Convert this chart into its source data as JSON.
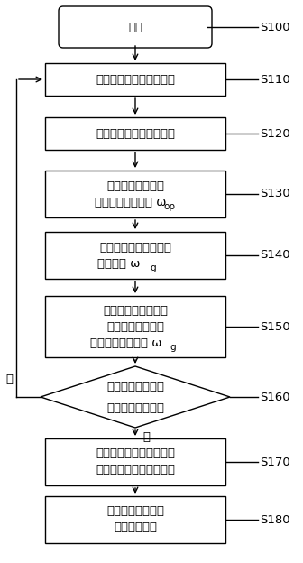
{
  "bg_color": "#ffffff",
  "start_label": "开始",
  "s110_label": "获取旋转主轴的垂直倾角",
  "s120_label": "计算旋转主轴的振颤烈度",
  "s130_line1": "根据当前风速计算",
  "s130_line2": "风力机的最优转速 ω",
  "s130_sub": "op",
  "s140_line1": "分析确定风力发电机的",
  "s140_line2": "期望转速 ω",
  "s140_sub": "g",
  "s150_line1": "转速内环控制器驱使",
  "s150_line2": "风力发电机的转速",
  "s150_line3": "快速达到期望转速 ω",
  "s150_sub": "g",
  "s160_line1": "振颤烈度是否超过",
  "s160_line2": "最大安全调控阈值",
  "s170_line1": "启动反向电动制动，以及",
  "s170_line2": "旋转主轴的电磁抱刹机构",
  "s180_line1": "发送故障停机信号",
  "s180_line2": "等待复位重启",
  "yes_label": "是",
  "no_label": "否",
  "step_codes": [
    "S100",
    "S110",
    "S120",
    "S130",
    "S140",
    "S150",
    "S160",
    "S170",
    "S180"
  ]
}
